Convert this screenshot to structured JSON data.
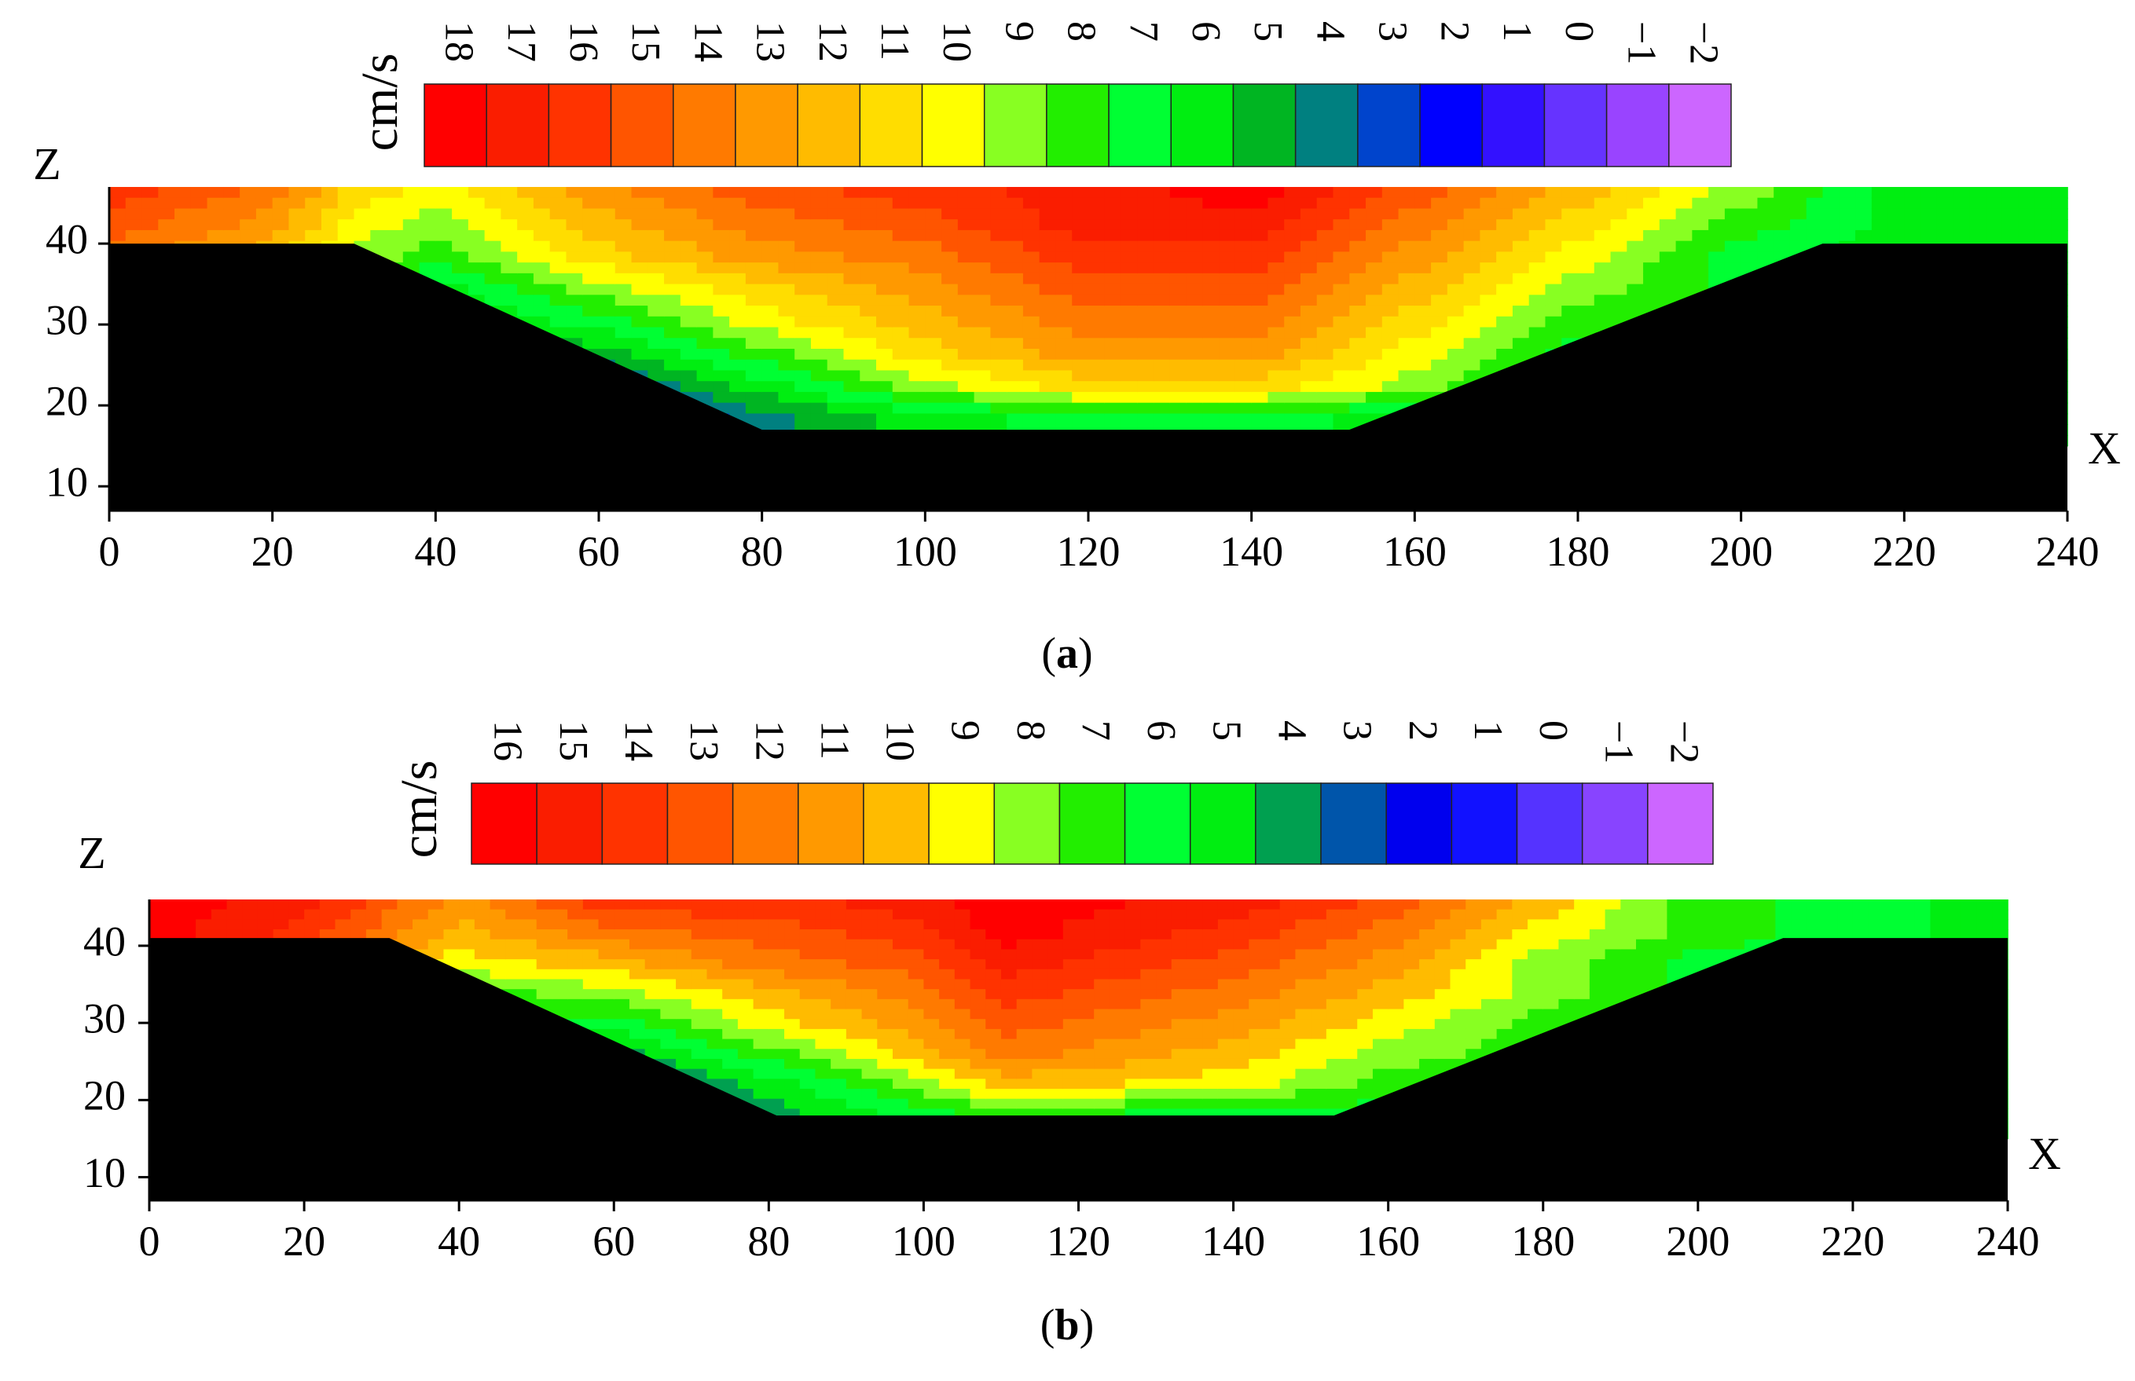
{
  "chart_data": [
    {
      "type": "heatmap",
      "panel_label": "a",
      "unit": "cm/s",
      "xlabel": "X",
      "ylabel": "Z",
      "xlim": [
        0,
        240
      ],
      "ylim": [
        7,
        47
      ],
      "x_ticks": [
        0,
        20,
        40,
        60,
        80,
        100,
        120,
        140,
        160,
        180,
        200,
        220,
        240
      ],
      "y_ticks": [
        10,
        20,
        30,
        40
      ],
      "colorbar": {
        "levels": [
          "18",
          "17",
          "16",
          "15",
          "14",
          "13",
          "12",
          "11",
          "10",
          "9",
          "8",
          "7",
          "6",
          "5",
          "4",
          "3",
          "2",
          "1",
          "0",
          "−1",
          "−2"
        ],
        "colors": [
          "#ff0000",
          "#fa1d00",
          "#ff3300",
          "#ff5500",
          "#ff7a00",
          "#ff9900",
          "#ffbb00",
          "#ffdd00",
          "#ffff00",
          "#88ff22",
          "#22ee00",
          "#00ff33",
          "#00ee11",
          "#00b522",
          "#008080",
          "#0044cc",
          "#0000ff",
          "#3311ff",
          "#6633ff",
          "#9944ff",
          "#cc66ff"
        ]
      },
      "bed_profile": [
        [
          0,
          40
        ],
        [
          30,
          40
        ],
        [
          80,
          17
        ],
        [
          152,
          17
        ],
        [
          210,
          40
        ],
        [
          240,
          40
        ]
      ],
      "velocity_field": [
        {
          "x": 0,
          "v": [
            16,
            15,
            14,
            14,
            13,
            13,
            13,
            13
          ]
        },
        {
          "x": 20,
          "v": [
            14,
            13,
            12,
            11,
            11,
            11,
            11,
            11
          ]
        },
        {
          "x": 30,
          "v": [
            11,
            10,
            9,
            7,
            5,
            4,
            5,
            6
          ]
        },
        {
          "x": 40,
          "v": [
            10,
            9,
            8,
            6,
            5,
            4,
            3,
            3
          ]
        },
        {
          "x": 60,
          "v": [
            13,
            12,
            11,
            9,
            7,
            5,
            3,
            1
          ]
        },
        {
          "x": 80,
          "v": [
            15,
            14,
            13,
            11,
            10,
            8,
            6,
            4
          ]
        },
        {
          "x": 100,
          "v": [
            16,
            15,
            14,
            13,
            12,
            11,
            9,
            6
          ]
        },
        {
          "x": 120,
          "v": [
            17,
            17,
            16,
            15,
            14,
            13,
            11,
            7
          ]
        },
        {
          "x": 140,
          "v": [
            18,
            17,
            16,
            15,
            14,
            13,
            11,
            7
          ]
        },
        {
          "x": 160,
          "v": [
            15,
            14,
            13,
            12,
            11,
            10,
            9,
            6
          ]
        },
        {
          "x": 180,
          "v": [
            12,
            11,
            10,
            9,
            8,
            7,
            6,
            5
          ]
        },
        {
          "x": 200,
          "v": [
            9,
            8,
            7,
            7,
            7,
            6,
            6,
            6
          ]
        },
        {
          "x": 220,
          "v": [
            6,
            6,
            6,
            6,
            6,
            6,
            6,
            6
          ]
        },
        {
          "x": 240,
          "v": [
            6,
            6,
            6,
            6,
            6,
            6,
            6,
            6
          ]
        }
      ]
    },
    {
      "type": "heatmap",
      "panel_label": "b",
      "unit": "cm/s",
      "xlabel": "X",
      "ylabel": "Z",
      "xlim": [
        0,
        240
      ],
      "ylim": [
        7,
        46
      ],
      "x_ticks": [
        0,
        20,
        40,
        60,
        80,
        100,
        120,
        140,
        160,
        180,
        200,
        220,
        240
      ],
      "y_ticks": [
        10,
        20,
        30,
        40
      ],
      "colorbar": {
        "levels": [
          "16",
          "15",
          "14",
          "13",
          "12",
          "11",
          "10",
          "9",
          "8",
          "7",
          "6",
          "5",
          "4",
          "3",
          "2",
          "1",
          "0",
          "−1",
          "−2"
        ],
        "colors": [
          "#ff0000",
          "#fa1d00",
          "#ff3300",
          "#ff5500",
          "#ff7a00",
          "#ff9900",
          "#ffbb00",
          "#ffff00",
          "#88ff22",
          "#22ee00",
          "#00ff33",
          "#00ee11",
          "#00a050",
          "#0055aa",
          "#0000ee",
          "#1111ff",
          "#5533ff",
          "#8844ff",
          "#cc66ff"
        ]
      },
      "bed_profile": [
        [
          0,
          41
        ],
        [
          31,
          41
        ],
        [
          81,
          18
        ],
        [
          153,
          18
        ],
        [
          211,
          41
        ],
        [
          240,
          41
        ]
      ],
      "velocity_field": [
        {
          "x": 0,
          "v": [
            16,
            16,
            15,
            15,
            14,
            14,
            14,
            14
          ]
        },
        {
          "x": 20,
          "v": [
            15,
            14,
            13,
            13,
            12,
            12,
            12,
            12
          ]
        },
        {
          "x": 30,
          "v": [
            13,
            12,
            10,
            8,
            7,
            6,
            6,
            6
          ]
        },
        {
          "x": 40,
          "v": [
            11,
            10,
            9,
            7,
            6,
            5,
            4,
            3
          ]
        },
        {
          "x": 60,
          "v": [
            14,
            12,
            10,
            8,
            6,
            4,
            2,
            0
          ]
        },
        {
          "x": 80,
          "v": [
            14,
            13,
            12,
            10,
            9,
            7,
            5,
            4
          ]
        },
        {
          "x": 100,
          "v": [
            15,
            14,
            13,
            12,
            11,
            10,
            8,
            6
          ]
        },
        {
          "x": 110,
          "v": [
            16,
            16,
            15,
            14,
            13,
            12,
            10,
            7
          ]
        },
        {
          "x": 140,
          "v": [
            15,
            14,
            13,
            12,
            11,
            10,
            9,
            6
          ]
        },
        {
          "x": 160,
          "v": [
            13,
            12,
            11,
            10,
            9,
            8,
            7,
            6
          ]
        },
        {
          "x": 180,
          "v": [
            10,
            9,
            8,
            8,
            7,
            7,
            6,
            6
          ]
        },
        {
          "x": 200,
          "v": [
            7,
            7,
            6,
            6,
            6,
            6,
            6,
            6
          ]
        },
        {
          "x": 220,
          "v": [
            6,
            6,
            6,
            6,
            6,
            6,
            6,
            6
          ]
        },
        {
          "x": 240,
          "v": [
            5,
            5,
            5,
            5,
            5,
            5,
            5,
            5
          ]
        }
      ]
    }
  ]
}
